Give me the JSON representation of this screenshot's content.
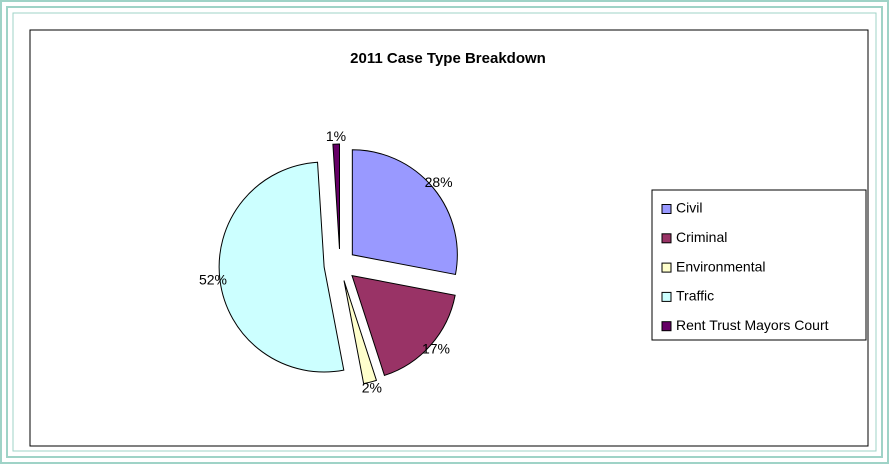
{
  "chart_data": {
    "type": "pie",
    "title": "2011 Case Type Breakdown",
    "categories": [
      "Civil",
      "Criminal",
      "Environmental",
      "Traffic",
      "Rent Trust Mayors Court"
    ],
    "values": [
      28,
      17,
      2,
      52,
      1
    ],
    "value_labels": [
      "28%",
      "17%",
      "2%",
      "52%",
      "1%"
    ],
    "colors": [
      "#9999ff",
      "#993366",
      "#ffffcc",
      "#ccffff",
      "#660066"
    ],
    "legend": "right"
  }
}
